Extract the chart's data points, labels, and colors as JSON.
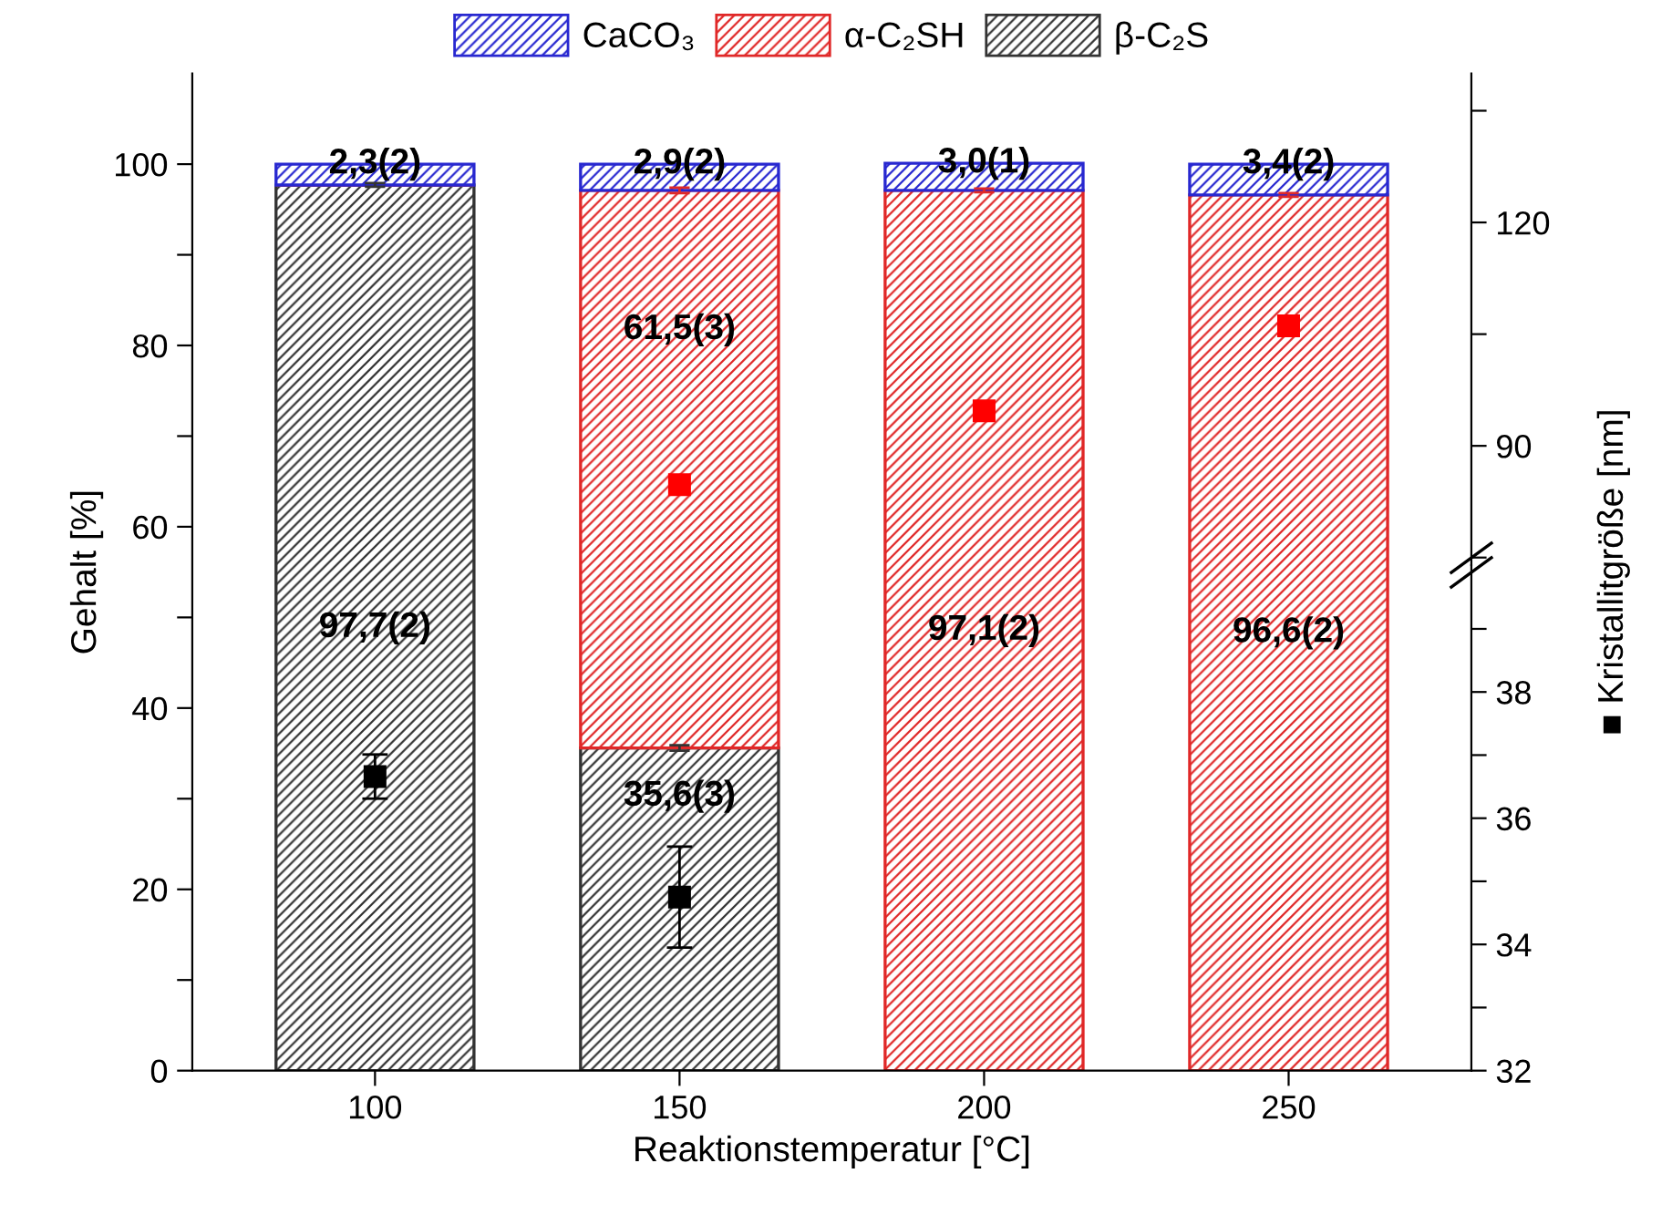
{
  "chart_data": {
    "type": "bar",
    "stacked": true,
    "categories": [
      "100",
      "150",
      "200",
      "250"
    ],
    "xlabel": "Reaktionstemperatur [°C]",
    "ylabel": "Gehalt [%]",
    "y2label": "■ Kristallitgröße [nm]",
    "ylim": [
      0,
      110
    ],
    "yticks": [
      0,
      {
        "value": 10,
        "label": null
      },
      20,
      {
        "value": 30,
        "label": null
      },
      40,
      {
        "value": 50,
        "label": null
      },
      60,
      {
        "value": 70,
        "label": null
      },
      80,
      {
        "value": 90,
        "label": null
      },
      100
    ],
    "y2lim": [
      32,
      47.8
    ],
    "y2ticks": [
      32,
      {
        "value": 33,
        "label": null
      },
      34,
      {
        "value": 35,
        "label": null
      },
      36,
      {
        "value": 37,
        "label": null
      },
      38,
      {
        "value": 39,
        "label": null
      }
    ],
    "y3lim": [
      6.1,
      140
    ],
    "y3ticks": [
      {
        "value": 75,
        "label": null
      },
      90,
      {
        "value": 105,
        "label": null
      },
      120,
      {
        "value": 135,
        "label": null
      }
    ],
    "legend": "top",
    "grid": false,
    "marker": "square",
    "series": [
      {
        "name": "β-C₂S",
        "color": "#333333",
        "values": [
          97.7,
          35.6,
          null,
          null
        ],
        "errors": [
          0.2,
          0.3,
          null,
          null
        ],
        "value_labels": [
          "97,7(2)",
          "35,6(3)",
          null,
          null
        ]
      },
      {
        "name": "α-C₂SH",
        "color": "#e02828",
        "values": [
          null,
          61.5,
          97.1,
          96.6
        ],
        "errors": [
          null,
          0.3,
          0.2,
          0.2
        ],
        "value_labels": [
          null,
          "61,5(3)",
          "97,1(2)",
          "96,6(2)"
        ]
      },
      {
        "name": "CaCO₃",
        "color": "#2828d0",
        "values": [
          2.3,
          2.9,
          3.0,
          3.4
        ],
        "value_labels": [
          "2,3(2)",
          "2,9(2)",
          "3,0(1)",
          "3,4(2)"
        ]
      },
      {
        "type": "scatter",
        "axis": "y2",
        "color": "#000000",
        "x": [
          "100",
          "150"
        ],
        "values": [
          36.66,
          34.75
        ],
        "errors": [
          0.35,
          0.8
        ]
      },
      {
        "type": "scatter",
        "axis": "y3",
        "color": "#ff0000",
        "x": [
          "150",
          "200",
          "250"
        ],
        "values": [
          84.8,
          94.7,
          106.1
        ]
      }
    ]
  }
}
